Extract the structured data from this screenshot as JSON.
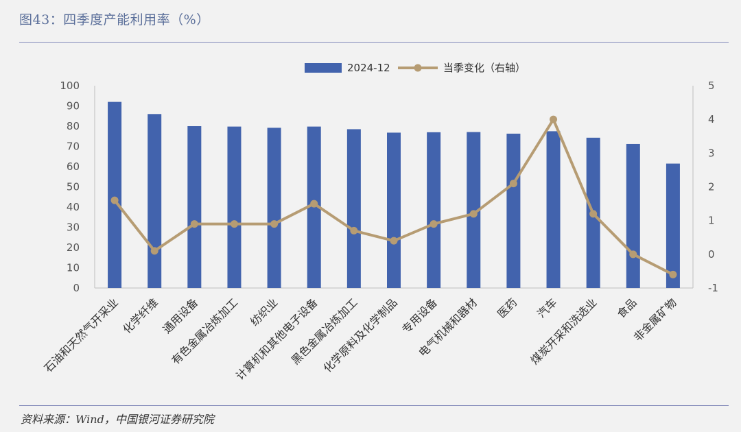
{
  "header": {
    "title": "图43：四季度产能利用率（%）"
  },
  "footer": {
    "source": "资料来源：Wind，中国银河证券研究院"
  },
  "chart_data": {
    "type": "bar",
    "categories": [
      "石油和天然气开采业",
      "化学纤维",
      "通用设备",
      "有色金属冶炼加工",
      "纺织业",
      "计算机和其他电子设备",
      "黑色金属冶炼加工",
      "化学原料及化学制品",
      "专用设备",
      "电气机械和器材",
      "医药",
      "汽车",
      "煤炭开采和洗选业",
      "食品",
      "非金属矿物"
    ],
    "series": [
      {
        "name": "2024-12",
        "kind": "bar",
        "axis": "left",
        "color": "#4263ad",
        "values": [
          92,
          86,
          80,
          79.8,
          79.2,
          79.8,
          78.5,
          76.8,
          77,
          77.1,
          76.3,
          77.5,
          74.3,
          71.2,
          61.5
        ]
      },
      {
        "name": "当季变化（右轴）",
        "kind": "line",
        "axis": "right",
        "color": "#b69c73",
        "values": [
          1.6,
          0.1,
          0.9,
          0.9,
          0.9,
          1.5,
          0.7,
          0.4,
          0.9,
          1.2,
          2.1,
          4.0,
          1.2,
          0.0,
          -0.6
        ]
      }
    ],
    "y_left": {
      "lim": [
        0,
        100
      ],
      "ticks": [
        "0",
        "10",
        "20",
        "30",
        "40",
        "50",
        "60",
        "70",
        "80",
        "90",
        "100"
      ]
    },
    "y_right": {
      "lim": [
        -1,
        5
      ],
      "ticks": [
        "-1",
        "0",
        "1",
        "2",
        "3",
        "4",
        "5"
      ]
    },
    "grid": false,
    "legend_position": "top-center"
  }
}
